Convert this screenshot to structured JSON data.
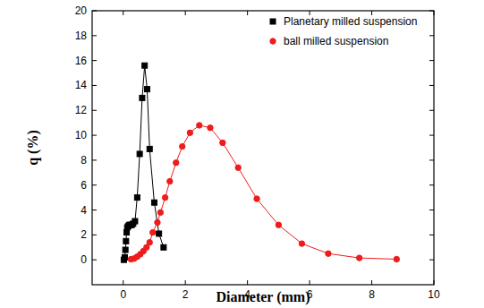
{
  "chart_data": {
    "type": "line",
    "x_label": "Diameter (mm)",
    "y_label": "q (%)",
    "xlim": [
      -1,
      10
    ],
    "ylim": [
      -2,
      20
    ],
    "xticks": [
      0,
      2,
      4,
      6,
      8,
      10
    ],
    "yticks": [
      0,
      2,
      4,
      6,
      8,
      10,
      12,
      14,
      16,
      18,
      20
    ],
    "grid": false,
    "legend": "upper right",
    "series": [
      {
        "name": "Planetary milled suspension",
        "color": "#000000",
        "marker": "square",
        "line_style": "solid",
        "x": [
          0.02,
          0.05,
          0.07,
          0.09,
          0.11,
          0.13,
          0.16,
          0.19,
          0.23,
          0.27,
          0.32,
          0.38,
          0.45,
          0.53,
          0.61,
          0.69,
          0.77,
          0.85,
          1.0,
          1.15,
          1.3
        ],
        "values": [
          0,
          0.2,
          0.8,
          1.5,
          2.2,
          2.6,
          2.7,
          2.8,
          2.8,
          2.8,
          2.9,
          3.1,
          5.0,
          8.5,
          13.0,
          15.6,
          13.7,
          8.9,
          4.6,
          2.1,
          1.0
        ]
      },
      {
        "name": "ball milled suspension",
        "color": "#ee1c1c",
        "marker": "circle",
        "line_style": "solid",
        "x": [
          0.25,
          0.35,
          0.45,
          0.55,
          0.65,
          0.75,
          0.85,
          0.95,
          1.1,
          1.2,
          1.35,
          1.5,
          1.7,
          1.9,
          2.15,
          2.45,
          2.8,
          3.2,
          3.7,
          4.3,
          5.0,
          5.75,
          6.6,
          7.6,
          8.8
        ],
        "values": [
          0.05,
          0.1,
          0.25,
          0.45,
          0.7,
          1.0,
          1.4,
          2.2,
          3.0,
          3.8,
          5.0,
          6.3,
          7.8,
          9.1,
          10.2,
          10.8,
          10.6,
          9.4,
          7.4,
          4.9,
          2.8,
          1.3,
          0.5,
          0.15,
          0.05
        ]
      }
    ]
  }
}
